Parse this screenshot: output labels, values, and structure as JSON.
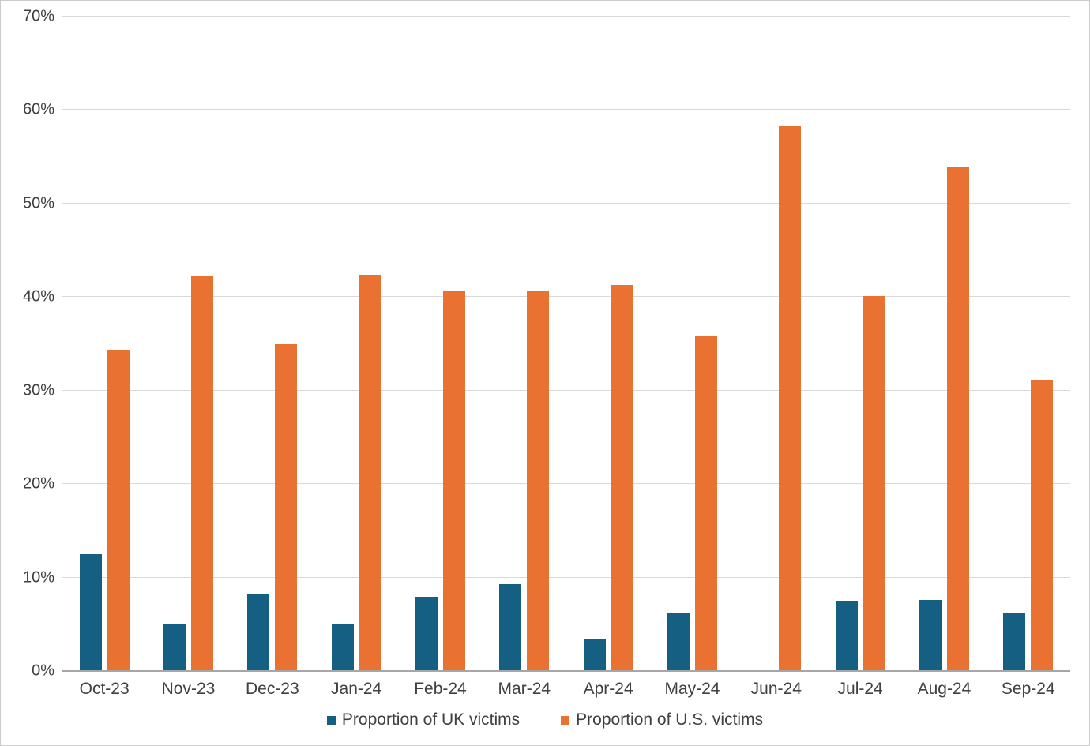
{
  "chart_data": {
    "type": "bar",
    "title": "",
    "xlabel": "",
    "ylabel": "",
    "categories": [
      "Oct-23",
      "Nov-23",
      "Dec-23",
      "Jan-24",
      "Feb-24",
      "Mar-24",
      "Apr-24",
      "May-24",
      "Jun-24",
      "Jul-24",
      "Aug-24",
      "Sep-24"
    ],
    "series": [
      {
        "name": "Proportion of UK victims",
        "color": "#156082",
        "values": [
          12.5,
          5.1,
          8.2,
          5.1,
          7.9,
          9.3,
          3.4,
          6.2,
          0,
          7.5,
          7.6,
          6.2
        ]
      },
      {
        "name": "Proportion of U.S. victims",
        "color": "#E97132",
        "values": [
          34.4,
          42.3,
          35.0,
          42.4,
          40.6,
          40.7,
          41.3,
          35.9,
          58.3,
          40.1,
          53.9,
          31.2
        ]
      }
    ],
    "ylim": [
      0,
      70
    ],
    "ytick_step": 10,
    "ytick_suffix": "%",
    "yticks": [
      "0%",
      "10%",
      "20%",
      "30%",
      "40%",
      "50%",
      "60%",
      "70%"
    ],
    "grid": true,
    "legend_position": "bottom"
  },
  "colors": {
    "gridline": "#d9d9d9",
    "axis_line": "#a6a6a6",
    "text": "#404040",
    "background": "#ffffff"
  }
}
